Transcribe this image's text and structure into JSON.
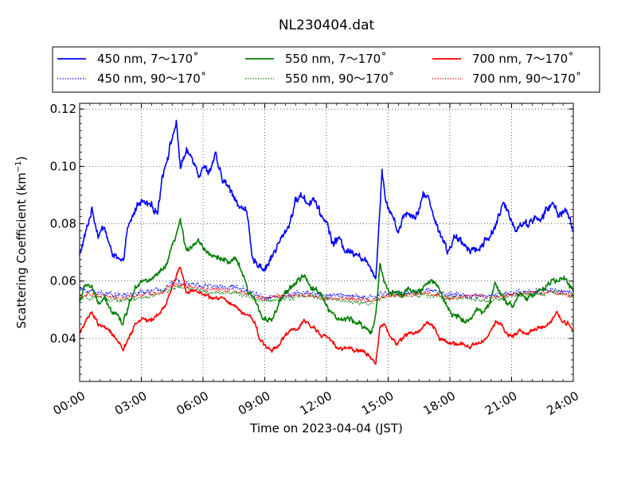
{
  "chart_data": {
    "type": "line",
    "title": "NL230404.dat",
    "xlabel": "Time on 2023-04-04 (JST)",
    "ylabel": "Scattering Coefficient (km",
    "ylabel_exponent": "−1",
    "ylabel_close": ")",
    "x_unit": "hour",
    "xlim": [
      0,
      24
    ],
    "ylim": [
      0.025,
      0.122
    ],
    "x_ticks": [
      0,
      3,
      6,
      9,
      12,
      15,
      18,
      21,
      24
    ],
    "x_tick_labels": [
      "00:00",
      "03:00",
      "06:00",
      "09:00",
      "12:00",
      "15:00",
      "18:00",
      "21:00",
      "24:00"
    ],
    "y_ticks": [
      0.04,
      0.06,
      0.08,
      0.1,
      0.12
    ],
    "y_tick_labels": [
      "0.04",
      "0.06",
      "0.08",
      "0.10",
      "0.12"
    ],
    "grid": true,
    "legend_position": "top (above plot)",
    "legend_columns": 3,
    "series": [
      {
        "name": "450 nm, 7～170˚",
        "color": "#0000ff",
        "style": "solid",
        "noise": 0.0018,
        "x": [
          0,
          0.3,
          0.6,
          0.9,
          1.2,
          1.5,
          1.8,
          2.1,
          2.3,
          2.6,
          2.9,
          3.2,
          3.5,
          3.8,
          4.0,
          4.3,
          4.5,
          4.7,
          4.9,
          5.2,
          5.5,
          5.8,
          6.0,
          6.3,
          6.6,
          6.9,
          7.2,
          7.5,
          7.8,
          8.1,
          8.4,
          8.7,
          9.0,
          9.3,
          9.6,
          9.9,
          10.2,
          10.5,
          10.8,
          11.1,
          11.4,
          11.7,
          12.0,
          12.3,
          12.6,
          12.9,
          13.2,
          13.5,
          13.8,
          14.1,
          14.4,
          14.5,
          14.7,
          14.9,
          15.2,
          15.5,
          15.8,
          16.1,
          16.4,
          16.7,
          17.0,
          17.3,
          17.6,
          17.9,
          18.2,
          18.5,
          18.8,
          19.1,
          19.4,
          19.7,
          20.0,
          20.3,
          20.6,
          20.9,
          21.2,
          21.5,
          21.8,
          22.1,
          22.4,
          22.7,
          23.0,
          23.3,
          23.6,
          23.9,
          24.0
        ],
        "y": [
          0.069,
          0.077,
          0.085,
          0.076,
          0.079,
          0.071,
          0.068,
          0.066,
          0.077,
          0.083,
          0.088,
          0.087,
          0.086,
          0.084,
          0.096,
          0.104,
          0.11,
          0.115,
          0.1,
          0.105,
          0.103,
          0.097,
          0.1,
          0.098,
          0.104,
          0.096,
          0.093,
          0.09,
          0.085,
          0.086,
          0.067,
          0.066,
          0.064,
          0.068,
          0.072,
          0.076,
          0.08,
          0.088,
          0.09,
          0.087,
          0.089,
          0.083,
          0.081,
          0.073,
          0.075,
          0.071,
          0.07,
          0.07,
          0.067,
          0.066,
          0.061,
          0.073,
          0.099,
          0.087,
          0.083,
          0.077,
          0.084,
          0.083,
          0.083,
          0.09,
          0.089,
          0.08,
          0.076,
          0.07,
          0.075,
          0.074,
          0.072,
          0.071,
          0.071,
          0.074,
          0.076,
          0.081,
          0.087,
          0.083,
          0.078,
          0.08,
          0.08,
          0.082,
          0.081,
          0.085,
          0.087,
          0.083,
          0.085,
          0.08,
          0.078
        ]
      },
      {
        "name": "450 nm, 90～170˚",
        "color": "#0000ff",
        "style": "dotted",
        "noise": 0.0013,
        "x": [
          0,
          1,
          2,
          3,
          4,
          4.7,
          5.5,
          6.5,
          7.5,
          8.5,
          9.0,
          10,
          11,
          12,
          13,
          14,
          14.5,
          15,
          16,
          17,
          18,
          19,
          20,
          21,
          22,
          23,
          24
        ],
        "y": [
          0.057,
          0.056,
          0.055,
          0.056,
          0.057,
          0.06,
          0.059,
          0.058,
          0.058,
          0.056,
          0.054,
          0.055,
          0.056,
          0.055,
          0.055,
          0.054,
          0.055,
          0.056,
          0.056,
          0.057,
          0.055,
          0.055,
          0.055,
          0.056,
          0.056,
          0.057,
          0.056
        ]
      },
      {
        "name": "550 nm, 7～170˚",
        "color": "#007f00",
        "style": "solid",
        "noise": 0.0013,
        "x": [
          0,
          0.3,
          0.6,
          0.9,
          1.2,
          1.5,
          1.8,
          2.1,
          2.4,
          2.7,
          3.0,
          3.3,
          3.6,
          3.9,
          4.2,
          4.5,
          4.7,
          4.9,
          5.2,
          5.5,
          5.8,
          6.1,
          6.4,
          6.7,
          7.0,
          7.3,
          7.6,
          7.9,
          8.2,
          8.5,
          8.8,
          9.1,
          9.4,
          9.7,
          10.0,
          10.3,
          10.6,
          10.9,
          11.2,
          11.5,
          11.8,
          12.1,
          12.4,
          12.7,
          13.0,
          13.3,
          13.6,
          13.9,
          14.2,
          14.4,
          14.6,
          14.8,
          15.1,
          15.4,
          15.7,
          16.0,
          16.3,
          16.6,
          16.9,
          17.2,
          17.5,
          17.8,
          18.1,
          18.4,
          18.7,
          19.0,
          19.3,
          19.6,
          19.9,
          20.2,
          20.5,
          20.8,
          21.1,
          21.4,
          21.7,
          22.0,
          22.3,
          22.6,
          22.9,
          23.2,
          23.5,
          23.8,
          24.0
        ],
        "y": [
          0.053,
          0.059,
          0.058,
          0.052,
          0.054,
          0.05,
          0.049,
          0.045,
          0.052,
          0.058,
          0.06,
          0.06,
          0.061,
          0.063,
          0.065,
          0.072,
          0.076,
          0.081,
          0.07,
          0.073,
          0.074,
          0.071,
          0.069,
          0.068,
          0.068,
          0.066,
          0.068,
          0.063,
          0.056,
          0.054,
          0.049,
          0.046,
          0.047,
          0.052,
          0.056,
          0.058,
          0.06,
          0.062,
          0.058,
          0.057,
          0.055,
          0.05,
          0.048,
          0.046,
          0.047,
          0.046,
          0.045,
          0.044,
          0.042,
          0.048,
          0.066,
          0.06,
          0.056,
          0.056,
          0.055,
          0.058,
          0.056,
          0.056,
          0.06,
          0.06,
          0.057,
          0.052,
          0.048,
          0.048,
          0.046,
          0.047,
          0.05,
          0.049,
          0.052,
          0.059,
          0.055,
          0.052,
          0.052,
          0.056,
          0.054,
          0.055,
          0.057,
          0.057,
          0.06,
          0.06,
          0.061,
          0.059,
          0.056
        ]
      },
      {
        "name": "550 nm, 90～170˚",
        "color": "#007f00",
        "style": "dotted",
        "noise": 0.0011,
        "x": [
          0,
          1,
          2,
          3,
          4,
          4.7,
          5.5,
          6.5,
          7.5,
          8.5,
          9.0,
          10,
          11,
          12,
          13,
          14,
          14.5,
          15,
          16,
          17,
          18,
          19,
          20,
          21,
          22,
          23,
          24
        ],
        "y": [
          0.054,
          0.054,
          0.053,
          0.054,
          0.056,
          0.058,
          0.057,
          0.056,
          0.056,
          0.054,
          0.053,
          0.054,
          0.055,
          0.054,
          0.053,
          0.052,
          0.054,
          0.055,
          0.055,
          0.055,
          0.054,
          0.054,
          0.053,
          0.055,
          0.055,
          0.056,
          0.055
        ]
      },
      {
        "name": "700 nm, 7～170˚",
        "color": "#ff0000",
        "style": "solid",
        "noise": 0.001,
        "x": [
          0,
          0.3,
          0.6,
          0.9,
          1.2,
          1.5,
          1.8,
          2.1,
          2.4,
          2.7,
          3.0,
          3.3,
          3.6,
          3.9,
          4.2,
          4.5,
          4.7,
          4.9,
          5.2,
          5.5,
          5.8,
          6.1,
          6.4,
          6.7,
          7.0,
          7.3,
          7.6,
          7.9,
          8.2,
          8.5,
          8.8,
          9.1,
          9.4,
          9.7,
          10.0,
          10.3,
          10.6,
          10.9,
          11.2,
          11.5,
          11.8,
          12.1,
          12.4,
          12.7,
          13.0,
          13.3,
          13.6,
          13.9,
          14.2,
          14.4,
          14.6,
          14.8,
          15.1,
          15.4,
          15.7,
          16.0,
          16.3,
          16.6,
          16.9,
          17.2,
          17.5,
          17.8,
          18.1,
          18.4,
          18.7,
          19.0,
          19.3,
          19.6,
          19.9,
          20.2,
          20.5,
          20.8,
          21.1,
          21.4,
          21.7,
          22.0,
          22.3,
          22.6,
          22.9,
          23.2,
          23.5,
          23.8,
          24.0
        ],
        "y": [
          0.042,
          0.046,
          0.049,
          0.045,
          0.044,
          0.042,
          0.04,
          0.036,
          0.04,
          0.045,
          0.047,
          0.046,
          0.047,
          0.049,
          0.052,
          0.058,
          0.062,
          0.065,
          0.056,
          0.057,
          0.056,
          0.055,
          0.054,
          0.054,
          0.054,
          0.052,
          0.051,
          0.049,
          0.048,
          0.046,
          0.039,
          0.037,
          0.036,
          0.038,
          0.041,
          0.043,
          0.043,
          0.046,
          0.045,
          0.043,
          0.041,
          0.04,
          0.038,
          0.036,
          0.037,
          0.036,
          0.036,
          0.035,
          0.033,
          0.031,
          0.044,
          0.045,
          0.041,
          0.038,
          0.04,
          0.042,
          0.042,
          0.043,
          0.046,
          0.044,
          0.04,
          0.039,
          0.038,
          0.038,
          0.038,
          0.037,
          0.038,
          0.039,
          0.041,
          0.046,
          0.045,
          0.041,
          0.041,
          0.043,
          0.041,
          0.043,
          0.044,
          0.044,
          0.046,
          0.049,
          0.046,
          0.045,
          0.043
        ]
      },
      {
        "name": "700 nm, 90～170˚",
        "color": "#ff0000",
        "style": "dotted",
        "noise": 0.001,
        "x": [
          0,
          1,
          2,
          3,
          4,
          4.7,
          5.5,
          6.5,
          7.5,
          8.5,
          9.0,
          10,
          11,
          12,
          13,
          14,
          14.5,
          15,
          16,
          17,
          18,
          19,
          20,
          21,
          22,
          23,
          24
        ],
        "y": [
          0.055,
          0.055,
          0.054,
          0.055,
          0.056,
          0.059,
          0.058,
          0.057,
          0.057,
          0.055,
          0.054,
          0.055,
          0.055,
          0.054,
          0.054,
          0.053,
          0.054,
          0.055,
          0.055,
          0.056,
          0.054,
          0.055,
          0.054,
          0.055,
          0.056,
          0.056,
          0.055
        ]
      }
    ]
  }
}
